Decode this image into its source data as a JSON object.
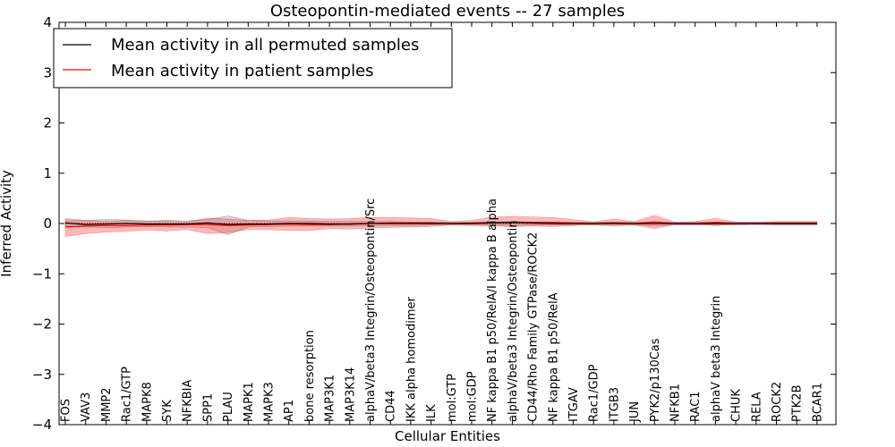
{
  "chart_data": {
    "type": "line",
    "title": "Osteopontin-mediated events -- 27 samples",
    "xlabel": "Cellular Entities",
    "ylabel": "Inferred Activity",
    "ylim": [
      -4,
      4
    ],
    "yticks": [
      -4,
      -3,
      -2,
      -1,
      0,
      1,
      2,
      3,
      4
    ],
    "ytick_labels": [
      "−4",
      "−3",
      "−2",
      "−1",
      "0",
      "1",
      "2",
      "3",
      "4"
    ],
    "grid": false,
    "legend_position": "top-left",
    "categories": [
      "FOS",
      "VAV3",
      "MMP2",
      "Rac1/GTP",
      "MAPK8",
      "SYK",
      "NFKBIA",
      "SPP1",
      "PLAU",
      "MAPK1",
      "MAPK3",
      "AP1",
      "bone resorption",
      "MAP3K1",
      "MAP3K14",
      "alphaV/beta3 Integrin/Osteopontin/Src",
      "CD44",
      "IKK alpha homodimer",
      "ILK",
      "mol:GTP",
      "mol:GDP",
      "NF kappa B1 p50/RelA/I kappa B alpha",
      "alphaV/beta3 Integrin/Osteopontin",
      "CD44/Rho Family GTPase/ROCK2",
      "NF kappa B1 p50/RelA",
      "ITGAV",
      "Rac1/GDP",
      "ITGB3",
      "JUN",
      "PYK2/p130Cas",
      "NFKB1",
      "RAC1",
      "alphaV beta3 Integrin",
      "CHUK",
      "RELA",
      "ROCK2",
      "PTK2B",
      "BCAR1"
    ],
    "series": [
      {
        "name": "Mean activity in all permuted samples",
        "color": "#000000",
        "values": [
          0.01,
          -0.02,
          -0.01,
          0.0,
          -0.01,
          -0.01,
          -0.01,
          0.01,
          -0.02,
          -0.01,
          -0.01,
          0.0,
          0.0,
          -0.01,
          -0.01,
          0.0,
          0.0,
          0.0,
          0.0,
          0.0,
          0.0,
          0.01,
          0.02,
          0.01,
          0.0,
          0.0,
          0.0,
          0.0,
          0.0,
          0.0,
          0.0,
          0.0,
          0.0,
          0.0,
          0.0,
          0.0,
          0.0,
          0.0
        ],
        "band_upper": [
          0.05,
          0.06,
          0.08,
          0.07,
          0.05,
          0.06,
          0.05,
          0.08,
          0.15,
          0.06,
          0.05,
          0.05,
          0.05,
          0.04,
          0.04,
          0.04,
          0.04,
          0.03,
          0.03,
          0.02,
          0.02,
          0.03,
          0.04,
          0.03,
          0.03,
          0.02,
          0.02,
          0.03,
          0.02,
          0.03,
          0.02,
          0.02,
          0.03,
          0.02,
          0.02,
          0.02,
          0.02,
          0.02
        ],
        "band_lower": [
          -0.05,
          -0.07,
          -0.08,
          -0.07,
          -0.06,
          -0.07,
          -0.07,
          -0.08,
          -0.22,
          -0.07,
          -0.06,
          -0.05,
          -0.05,
          -0.05,
          -0.05,
          -0.04,
          -0.04,
          -0.04,
          -0.03,
          -0.02,
          -0.02,
          -0.03,
          -0.04,
          -0.03,
          -0.03,
          -0.03,
          -0.03,
          -0.04,
          -0.03,
          -0.04,
          -0.03,
          -0.03,
          -0.03,
          -0.03,
          -0.02,
          -0.03,
          -0.03,
          -0.03
        ]
      },
      {
        "name": "Mean activity in patient samples",
        "color": "#ff0000",
        "values": [
          -0.07,
          -0.05,
          -0.04,
          -0.04,
          -0.03,
          -0.03,
          -0.02,
          -0.02,
          -0.04,
          -0.03,
          -0.02,
          -0.01,
          -0.02,
          -0.02,
          -0.01,
          0.0,
          0.01,
          0.01,
          0.01,
          0.0,
          0.01,
          0.02,
          0.02,
          0.02,
          0.02,
          0.01,
          0.0,
          0.01,
          0.0,
          0.03,
          0.0,
          0.0,
          0.02,
          0.0,
          0.0,
          0.01,
          0.01,
          0.01
        ],
        "band_upper": [
          0.1,
          0.06,
          0.05,
          0.06,
          0.04,
          0.05,
          0.03,
          0.11,
          0.09,
          0.06,
          0.07,
          0.12,
          0.1,
          0.09,
          0.1,
          0.12,
          0.12,
          0.11,
          0.1,
          0.04,
          0.06,
          0.13,
          0.14,
          0.13,
          0.12,
          0.08,
          0.03,
          0.09,
          0.04,
          0.16,
          0.03,
          0.04,
          0.1,
          0.03,
          0.03,
          0.04,
          0.04,
          0.04
        ],
        "band_lower": [
          -0.26,
          -0.2,
          -0.17,
          -0.16,
          -0.13,
          -0.15,
          -0.12,
          -0.2,
          -0.18,
          -0.12,
          -0.12,
          -0.14,
          -0.14,
          -0.1,
          -0.11,
          -0.09,
          -0.08,
          -0.07,
          -0.06,
          -0.03,
          -0.04,
          -0.05,
          -0.06,
          -0.05,
          -0.06,
          -0.04,
          -0.02,
          -0.04,
          -0.03,
          -0.1,
          -0.02,
          -0.02,
          -0.04,
          -0.02,
          -0.02,
          -0.02,
          -0.02,
          -0.02
        ]
      }
    ]
  }
}
